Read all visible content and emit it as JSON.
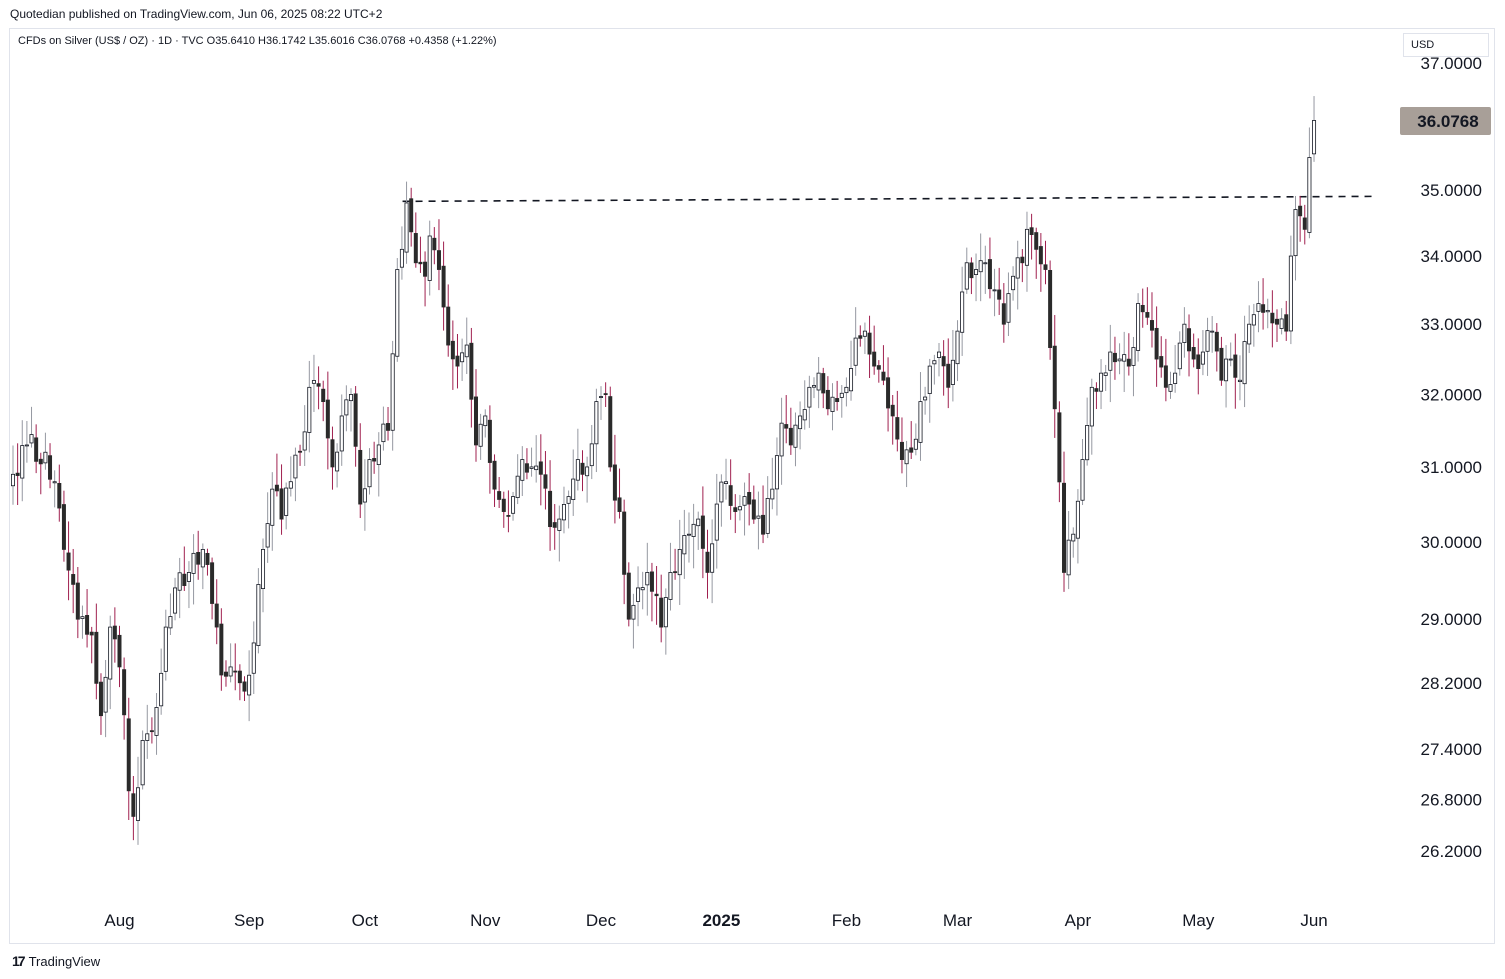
{
  "header": {
    "publish_line": "Quotedian published on TradingView.com, Jun 06, 2025 08:22 UTC+2"
  },
  "legend": {
    "symbol_line": "CFDs on Silver (US$ / OZ) · 1D · TVC  O35.6410  H36.1742  L35.6016  C36.0768  +0.4358 (+1.22%)"
  },
  "price_scale": {
    "currency": "USD",
    "last_price_label": "36.0768",
    "last_price_color": "#a89f98"
  },
  "footer": {
    "brand": "TradingView",
    "logo_icon": "tradingview-logo-icon"
  },
  "colors": {
    "up_body": "#ffffff",
    "up_outline": "#131722",
    "down_body": "#2a2a2a",
    "up_wick": "#9598a1",
    "down_wick": "#a0204f"
  },
  "chart_data": {
    "type": "candlestick",
    "title": "CFDs on Silver (US$ / OZ)",
    "interval": "1D",
    "source": "TVC",
    "scale": "log",
    "ylim": [
      25.6,
      37.2
    ],
    "y_ticks": [
      "37.0000",
      "35.0000",
      "34.0000",
      "33.0000",
      "32.0000",
      "31.0000",
      "30.0000",
      "29.0000",
      "28.2000",
      "27.4000",
      "26.8000",
      "26.2000"
    ],
    "x_ticks": [
      "Aug",
      "Sep",
      "Oct",
      "Nov",
      "Dec",
      "2025",
      "Feb",
      "Mar",
      "Apr",
      "May",
      "Jun"
    ],
    "anchors": [
      {
        "d": 0,
        "c": 30.9
      },
      {
        "d": 3,
        "c": 31.3
      },
      {
        "d": 7,
        "c": 31.2
      },
      {
        "d": 9,
        "c": 30.8
      },
      {
        "d": 11,
        "c": 29.9
      },
      {
        "d": 14,
        "c": 29.0
      },
      {
        "d": 17,
        "c": 28.8
      },
      {
        "d": 19,
        "c": 27.8
      },
      {
        "d": 21,
        "c": 28.9
      },
      {
        "d": 23,
        "c": 28.4
      },
      {
        "d": 25,
        "c": 26.9
      },
      {
        "d": 26,
        "c": 26.6
      },
      {
        "d": 28,
        "c": 27.5
      },
      {
        "d": 31,
        "c": 27.9
      },
      {
        "d": 33,
        "c": 28.9
      },
      {
        "d": 35,
        "c": 29.4
      },
      {
        "d": 38,
        "c": 29.6
      },
      {
        "d": 41,
        "c": 29.9
      },
      {
        "d": 43,
        "c": 29.2
      },
      {
        "d": 45,
        "c": 28.3
      },
      {
        "d": 47,
        "c": 28.4
      },
      {
        "d": 50,
        "c": 28.1
      },
      {
        "d": 52,
        "c": 28.7
      },
      {
        "d": 54,
        "c": 29.9
      },
      {
        "d": 56,
        "c": 30.7
      },
      {
        "d": 58,
        "c": 30.3
      },
      {
        "d": 60,
        "c": 30.8
      },
      {
        "d": 62,
        "c": 31.2
      },
      {
        "d": 64,
        "c": 32.1
      },
      {
        "d": 67,
        "c": 31.9
      },
      {
        "d": 69,
        "c": 31.0
      },
      {
        "d": 71,
        "c": 31.7
      },
      {
        "d": 73,
        "c": 32.0
      },
      {
        "d": 75,
        "c": 30.5
      },
      {
        "d": 77,
        "c": 31.1
      },
      {
        "d": 79,
        "c": 31.3
      },
      {
        "d": 81,
        "c": 31.5
      },
      {
        "d": 83,
        "c": 33.8
      },
      {
        "d": 84,
        "c": 34.1
      },
      {
        "d": 85,
        "c": 34.8
      },
      {
        "d": 87,
        "c": 33.9
      },
      {
        "d": 89,
        "c": 33.7
      },
      {
        "d": 90,
        "c": 34.3
      },
      {
        "d": 92,
        "c": 33.8
      },
      {
        "d": 94,
        "c": 32.7
      },
      {
        "d": 96,
        "c": 32.4
      },
      {
        "d": 98,
        "c": 32.7
      },
      {
        "d": 100,
        "c": 31.3
      },
      {
        "d": 102,
        "c": 31.7
      },
      {
        "d": 104,
        "c": 30.7
      },
      {
        "d": 106,
        "c": 30.4
      },
      {
        "d": 108,
        "c": 30.6
      },
      {
        "d": 110,
        "c": 31.1
      },
      {
        "d": 112,
        "c": 31.0
      },
      {
        "d": 114,
        "c": 30.9
      },
      {
        "d": 116,
        "c": 30.2
      },
      {
        "d": 118,
        "c": 30.3
      },
      {
        "d": 120,
        "c": 30.6
      },
      {
        "d": 122,
        "c": 31.1
      },
      {
        "d": 124,
        "c": 31.0
      },
      {
        "d": 126,
        "c": 31.9
      },
      {
        "d": 128,
        "c": 32.0
      },
      {
        "d": 129,
        "c": 31.0
      },
      {
        "d": 131,
        "c": 30.4
      },
      {
        "d": 133,
        "c": 29.0
      },
      {
        "d": 135,
        "c": 29.4
      },
      {
        "d": 137,
        "c": 29.6
      },
      {
        "d": 139,
        "c": 29.3
      },
      {
        "d": 140,
        "c": 28.9
      },
      {
        "d": 142,
        "c": 29.6
      },
      {
        "d": 144,
        "c": 29.9
      },
      {
        "d": 146,
        "c": 30.1
      },
      {
        "d": 148,
        "c": 30.3
      },
      {
        "d": 150,
        "c": 29.6
      },
      {
        "d": 152,
        "c": 30.5
      },
      {
        "d": 154,
        "c": 30.8
      },
      {
        "d": 156,
        "c": 30.4
      },
      {
        "d": 158,
        "c": 30.6
      },
      {
        "d": 160,
        "c": 30.3
      },
      {
        "d": 162,
        "c": 30.1
      },
      {
        "d": 164,
        "c": 30.7
      },
      {
        "d": 166,
        "c": 31.6
      },
      {
        "d": 168,
        "c": 31.3
      },
      {
        "d": 170,
        "c": 31.7
      },
      {
        "d": 172,
        "c": 32.1
      },
      {
        "d": 174,
        "c": 32.3
      },
      {
        "d": 176,
        "c": 31.8
      },
      {
        "d": 178,
        "c": 31.9
      },
      {
        "d": 180,
        "c": 32.1
      },
      {
        "d": 182,
        "c": 32.8
      },
      {
        "d": 184,
        "c": 32.9
      },
      {
        "d": 186,
        "c": 32.4
      },
      {
        "d": 188,
        "c": 32.2
      },
      {
        "d": 190,
        "c": 31.7
      },
      {
        "d": 192,
        "c": 31.1
      },
      {
        "d": 194,
        "c": 31.2
      },
      {
        "d": 196,
        "c": 31.9
      },
      {
        "d": 198,
        "c": 32.4
      },
      {
        "d": 200,
        "c": 32.6
      },
      {
        "d": 202,
        "c": 32.1
      },
      {
        "d": 204,
        "c": 32.9
      },
      {
        "d": 206,
        "c": 33.9
      },
      {
        "d": 208,
        "c": 33.8
      },
      {
        "d": 210,
        "c": 33.9
      },
      {
        "d": 212,
        "c": 33.5
      },
      {
        "d": 214,
        "c": 33.0
      },
      {
        "d": 216,
        "c": 33.7
      },
      {
        "d": 218,
        "c": 33.9
      },
      {
        "d": 219,
        "c": 34.4
      },
      {
        "d": 221,
        "c": 34.1
      },
      {
        "d": 223,
        "c": 33.8
      },
      {
        "d": 225,
        "c": 31.8
      },
      {
        "d": 227,
        "c": 29.6
      },
      {
        "d": 229,
        "c": 30.1
      },
      {
        "d": 231,
        "c": 31.1
      },
      {
        "d": 233,
        "c": 32.1
      },
      {
        "d": 235,
        "c": 32.3
      },
      {
        "d": 237,
        "c": 32.6
      },
      {
        "d": 239,
        "c": 32.5
      },
      {
        "d": 241,
        "c": 32.4
      },
      {
        "d": 243,
        "c": 33.3
      },
      {
        "d": 245,
        "c": 33.1
      },
      {
        "d": 247,
        "c": 32.5
      },
      {
        "d": 249,
        "c": 32.1
      },
      {
        "d": 251,
        "c": 32.3
      },
      {
        "d": 253,
        "c": 33.0
      },
      {
        "d": 255,
        "c": 32.5
      },
      {
        "d": 257,
        "c": 32.6
      },
      {
        "d": 259,
        "c": 32.9
      },
      {
        "d": 261,
        "c": 32.2
      },
      {
        "d": 263,
        "c": 32.5
      },
      {
        "d": 265,
        "c": 32.2
      },
      {
        "d": 267,
        "c": 33.0
      },
      {
        "d": 269,
        "c": 33.3
      },
      {
        "d": 271,
        "c": 33.2
      },
      {
        "d": 273,
        "c": 33.0
      },
      {
        "d": 275,
        "c": 32.9
      },
      {
        "d": 276,
        "c": 34.0
      },
      {
        "d": 277,
        "c": 34.7
      },
      {
        "d": 279,
        "c": 34.4
      },
      {
        "d": 280,
        "c": 35.5
      },
      {
        "d": 281,
        "c": 36.08
      }
    ],
    "resistance_level": 34.87,
    "resistance_from_day": 85
  }
}
